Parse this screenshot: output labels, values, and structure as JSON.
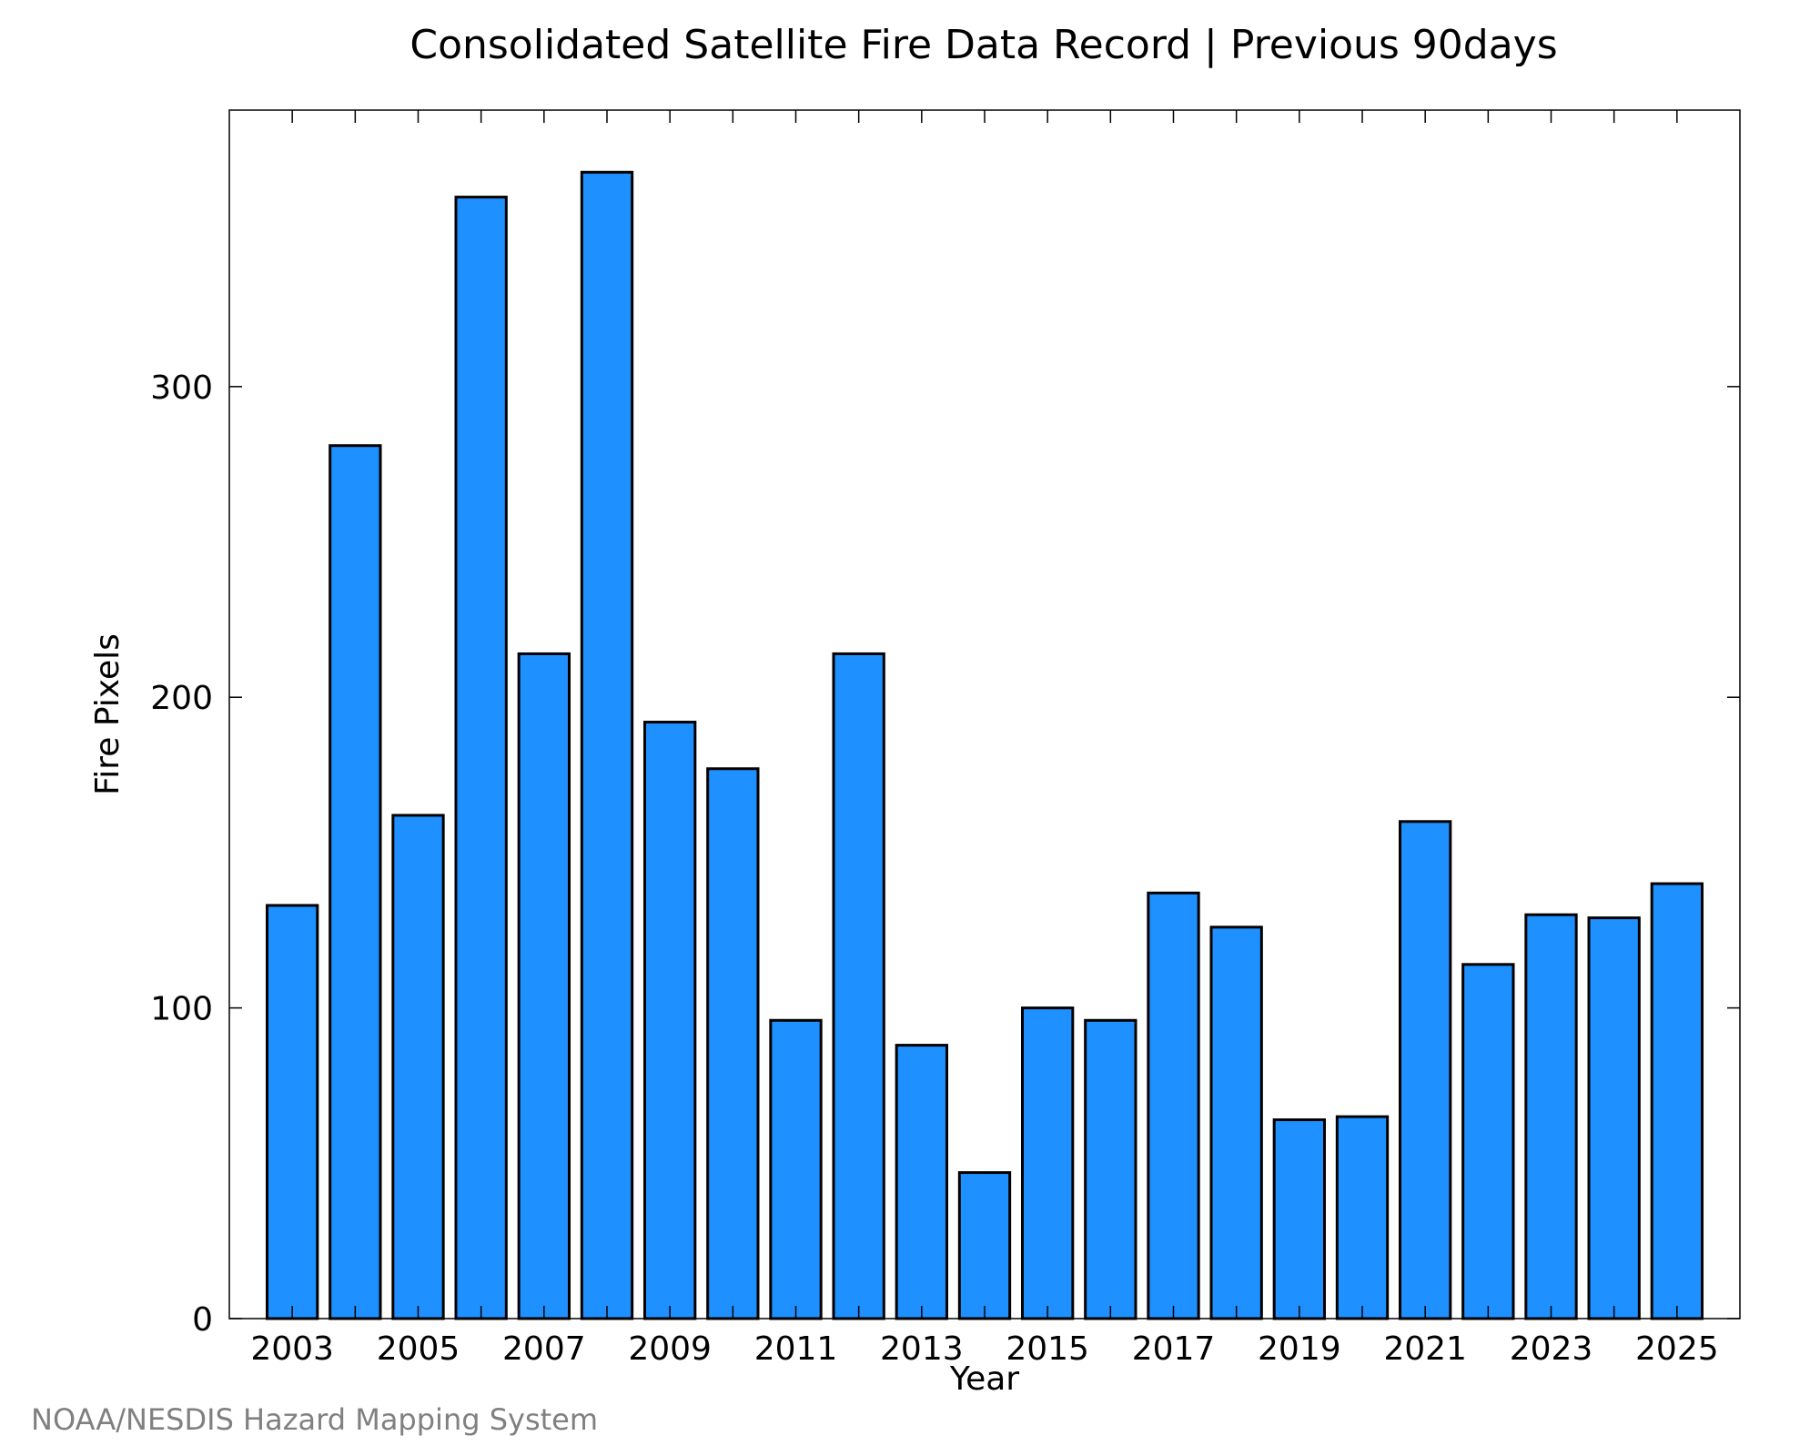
{
  "chart_data": {
    "type": "bar",
    "title": "Consolidated Satellite Fire Data Record | Previous 90days",
    "xlabel": "Year",
    "ylabel": "Fire Pixels",
    "categories": [
      "2003",
      "2004",
      "2005",
      "2006",
      "2007",
      "2008",
      "2009",
      "2010",
      "2011",
      "2012",
      "2013",
      "2014",
      "2015",
      "2016",
      "2017",
      "2018",
      "2019",
      "2020",
      "2021",
      "2022",
      "2023",
      "2024",
      "2025"
    ],
    "values": [
      133,
      281,
      162,
      361,
      214,
      369,
      192,
      177,
      96,
      214,
      88,
      47,
      100,
      96,
      137,
      126,
      64,
      65,
      160,
      114,
      130,
      129,
      140
    ],
    "x_tick_labels": [
      "2003",
      "2005",
      "2007",
      "2009",
      "2011",
      "2013",
      "2015",
      "2017",
      "2019",
      "2021",
      "2023",
      "2025"
    ],
    "y_ticks": [
      0,
      100,
      200,
      300
    ],
    "y_tick_labels": [
      "0",
      "100",
      "200",
      "300"
    ],
    "ylim": [
      0,
      389
    ],
    "grid": false,
    "bar_color": "#1e90ff",
    "edge_color": "#000000"
  },
  "footer": {
    "credit": "NOAA/NESDIS Hazard Mapping System"
  }
}
